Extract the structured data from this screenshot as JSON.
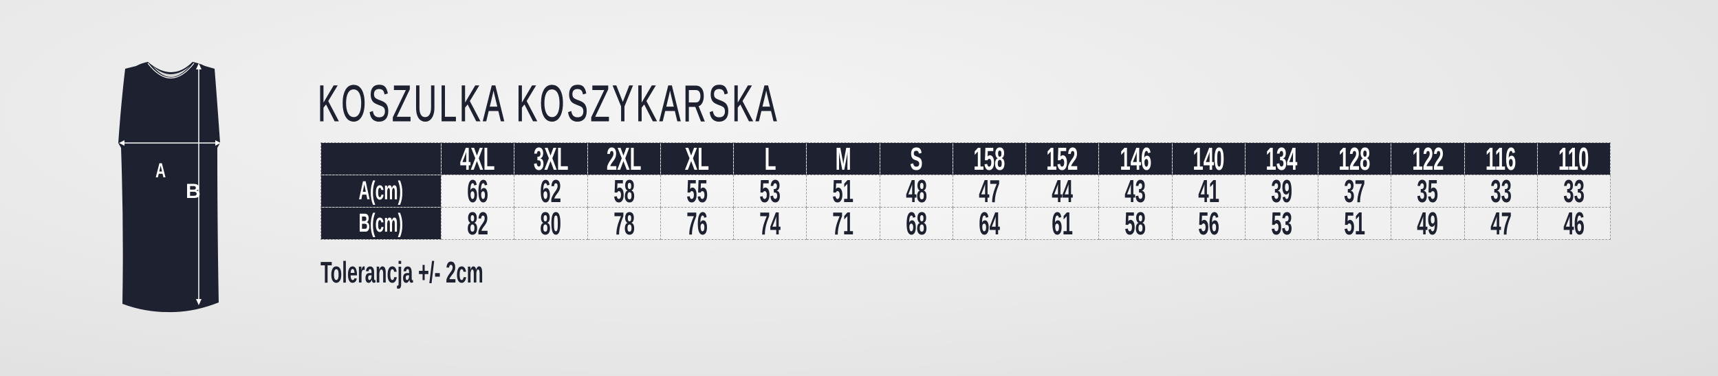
{
  "title": "KOSZULKA KOSZYKARSKA",
  "jersey": {
    "label_a": "A",
    "label_b": "B",
    "color": "#1e2130"
  },
  "table": {
    "header_label": "",
    "sizes": [
      "4XL",
      "3XL",
      "2XL",
      "XL",
      "L",
      "M",
      "S",
      "158",
      "152",
      "146",
      "140",
      "134",
      "128",
      "122",
      "116",
      "110"
    ],
    "rows": [
      {
        "label": "A(cm)",
        "values": [
          "66",
          "62",
          "58",
          "55",
          "53",
          "51",
          "48",
          "47",
          "44",
          "43",
          "41",
          "39",
          "37",
          "35",
          "33",
          "33"
        ]
      },
      {
        "label": "B(cm)",
        "values": [
          "82",
          "80",
          "78",
          "76",
          "74",
          "71",
          "68",
          "64",
          "61",
          "58",
          "56",
          "53",
          "51",
          "49",
          "47",
          "46"
        ]
      }
    ]
  },
  "tolerance": "Tolerancja +/- 2cm"
}
